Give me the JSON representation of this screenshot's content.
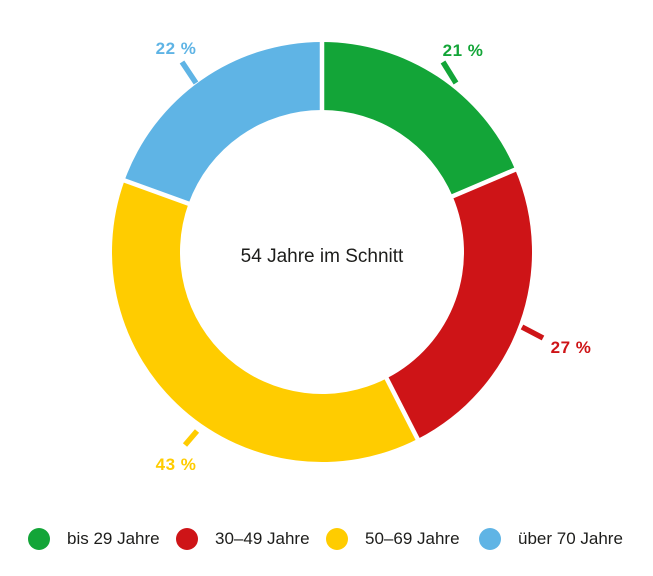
{
  "background_color": "#ffffff",
  "text_color": "#1D1D1B",
  "chart_data": {
    "type": "pie",
    "subtype": "donut",
    "center_label": "54 Jahre im Schnitt",
    "legend_position": "bottom",
    "slices": [
      {
        "legend_label": "bis 29 Jahre",
        "value": 21,
        "display": "21 %",
        "color": "#13A538"
      },
      {
        "legend_label": "30–49 Jahre",
        "value": 27,
        "display": "27 %",
        "color": "#CE1417"
      },
      {
        "legend_label": "50–69 Jahre",
        "value": 43,
        "display": "43 %",
        "color": "#FFCC00"
      },
      {
        "legend_label": "über 70 Jahre",
        "value": 22,
        "display": "22 %",
        "color": "#5FB4E5"
      }
    ]
  }
}
